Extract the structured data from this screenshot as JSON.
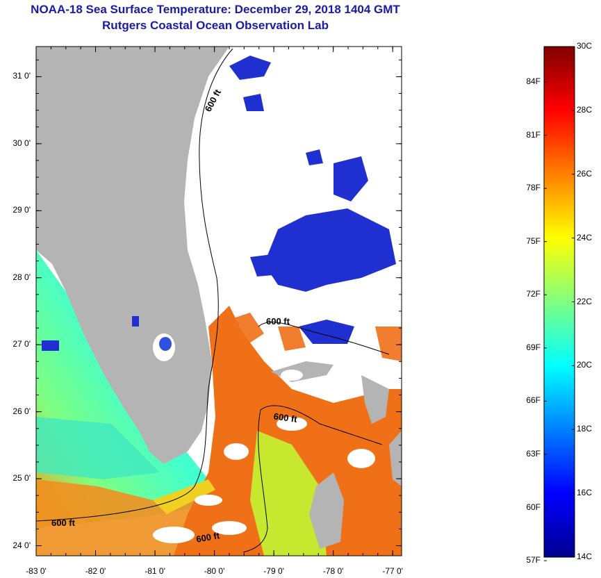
{
  "title": "NOAA-18 Sea Surface Temperature:  December 29, 2018 1404 GMT",
  "subtitle": "Rutgers Coastal Ocean Observation Lab",
  "map": {
    "lat_labels": [
      "31 0'",
      "30 0'",
      "29 0'",
      "28 0'",
      "27 0'",
      "26 0'",
      "25 0'",
      "24 0'"
    ],
    "lat_values": [
      31,
      30,
      29,
      28,
      27,
      26,
      25,
      24
    ],
    "lon_labels": [
      "-83 0'",
      "-82 0'",
      "-81 0'",
      "-80 0'",
      "-79 0'",
      "-78 0'",
      "-77 0'"
    ],
    "lon_values": [
      -83,
      -82,
      -81,
      -80,
      -79,
      -78,
      -77
    ],
    "lat_range": [
      23.85,
      31.45
    ],
    "lon_range": [
      -83,
      -76.85
    ],
    "land_color": "#b4b4b4",
    "cloud_color": "#ffffff",
    "contour_labels": [
      {
        "id": "north",
        "text": "600 ft"
      },
      {
        "id": "mid",
        "text": "600 ft"
      },
      {
        "id": "east",
        "text": "600 ft"
      },
      {
        "id": "west",
        "text": "600 ft"
      },
      {
        "id": "south",
        "text": "600 ft"
      }
    ]
  },
  "colorbar": {
    "celsius_labels": [
      "30C",
      "28C",
      "26C",
      "24C",
      "22C",
      "20C",
      "18C",
      "16C",
      "14C"
    ],
    "fahrenheit_labels": [
      "84F",
      "81F",
      "78F",
      "75F",
      "72F",
      "69F",
      "66F",
      "63F",
      "60F",
      "57F"
    ],
    "min_c": 14,
    "max_c": 30,
    "colors": [
      "#00008f",
      "#0000ff",
      "#0080ff",
      "#00ffff",
      "#80ff80",
      "#ffff00",
      "#ff8000",
      "#ff0000",
      "#800000"
    ]
  }
}
